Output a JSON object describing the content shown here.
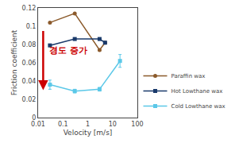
{
  "chart_data": {
    "type": "line",
    "xlabel": "Velocity [m/s]",
    "ylabel": "Friction coefficient",
    "log": "x",
    "xlim": [
      0.01,
      100
    ],
    "xticks": [
      0.01,
      0.1,
      1,
      10,
      100
    ],
    "ylim": [
      0,
      0.12
    ],
    "yticks": [
      0,
      0.02,
      0.04,
      0.06,
      0.08,
      0.1,
      0.12
    ],
    "grid": false,
    "legend": "lower right",
    "series": [
      {
        "name": "Paraffin wax",
        "color": "#8B5A2B",
        "marker": "circle",
        "x": [
          0.03,
          0.3,
          3.0,
          5.0
        ],
        "values": [
          0.104,
          0.114,
          0.074,
          0.082
        ]
      },
      {
        "name": "Hot Lowthane wax",
        "color": "#1a3a6b",
        "marker": "square",
        "x": [
          0.03,
          0.3,
          3.0,
          5.0
        ],
        "values": [
          0.079,
          0.086,
          0.086,
          0.082
        ]
      },
      {
        "name": "Cold Lowthane wax",
        "color": "#5bc8e8",
        "marker": "square",
        "x": [
          0.03,
          0.3,
          3.0,
          20.0
        ],
        "values": [
          0.036,
          0.029,
          0.031,
          0.062
        ],
        "errors": [
          0.005,
          0.002,
          0.002,
          0.007
        ]
      }
    ],
    "annotations": [
      {
        "text": "경도 증가",
        "x": 0.025,
        "y": 0.066,
        "color": "#cc0000"
      }
    ],
    "arrows": [
      {
        "x": 0.016,
        "y_start": 0.096,
        "y_end": 0.03,
        "color": "#cc0000"
      }
    ]
  }
}
